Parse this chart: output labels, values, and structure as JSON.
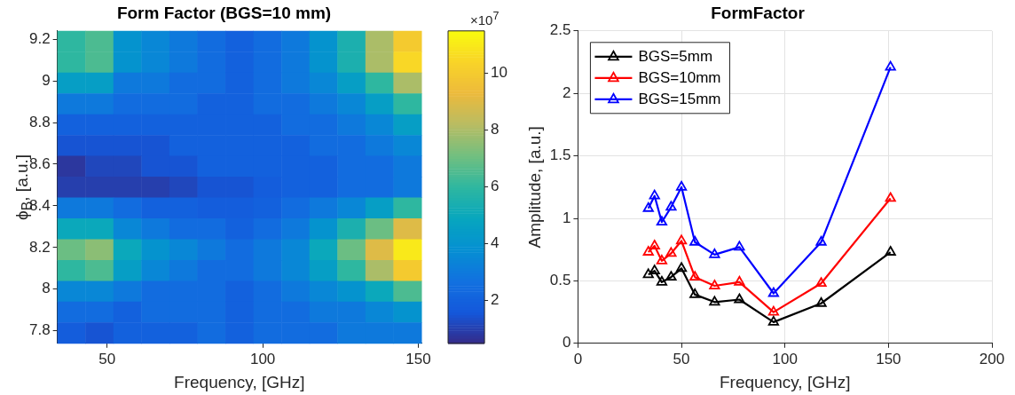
{
  "chart_data": [
    {
      "type": "heatmap",
      "title": "Form Factor (BGS=10 mm)",
      "xlabel": "Frequency, [GHz]",
      "ylabel": "ϕ$_{B}$, [a.u.]",
      "clabel": "×10$^{7}$",
      "x": [
        38.5,
        47.5,
        56.5,
        65.5,
        74.5,
        83.5,
        92.5,
        101.5,
        110.5,
        119.5,
        128.5,
        137.5,
        146.5
      ],
      "y": [
        9.19,
        9.09,
        8.99,
        8.89,
        8.79,
        8.69,
        8.59,
        8.49,
        8.39,
        8.29,
        8.19,
        8.09,
        7.99,
        7.89,
        7.79
      ],
      "cells": [
        [
          6,
          6.5,
          4,
          3.5,
          3,
          2.5,
          2,
          2.5,
          3,
          4,
          5.5,
          8,
          10
        ],
        [
          6,
          6.5,
          4,
          3.5,
          3,
          2.5,
          2,
          2.5,
          3,
          4,
          5.5,
          8,
          10.5
        ],
        [
          4.5,
          4.5,
          3,
          3,
          2.5,
          2.5,
          2,
          2.5,
          3,
          3.5,
          4.5,
          6,
          8
        ],
        [
          3,
          3,
          2.5,
          2.5,
          2.5,
          2,
          2,
          2.5,
          2.5,
          3,
          3.5,
          4.5,
          6
        ],
        [
          2,
          2,
          2,
          2,
          2,
          2,
          2,
          2,
          2.5,
          2.5,
          3,
          3.5,
          4.5
        ],
        [
          1.5,
          1.5,
          1.5,
          1.5,
          2,
          2,
          2,
          2,
          2,
          2.5,
          2.5,
          3,
          3.5
        ],
        [
          0.8,
          1.2,
          1.2,
          1.5,
          1.5,
          2,
          2,
          2,
          2,
          2,
          2.5,
          2.5,
          3
        ],
        [
          1,
          1,
          1,
          1,
          1.2,
          1.5,
          1.5,
          1.8,
          2,
          2,
          2.5,
          2.5,
          3
        ],
        [
          3,
          3,
          2.5,
          2,
          2,
          1.8,
          1.8,
          2,
          2.5,
          3,
          3.5,
          4.5,
          6
        ],
        [
          5,
          5,
          3.5,
          3,
          2.5,
          2.5,
          2,
          2.5,
          3,
          4,
          5.5,
          7,
          9
        ],
        [
          7,
          7.5,
          5,
          4,
          3.5,
          3,
          2.5,
          3,
          3.5,
          5,
          7,
          9,
          11
        ],
        [
          6,
          6.5,
          4.5,
          3.5,
          3,
          2.5,
          2.5,
          3,
          3.5,
          4.5,
          6,
          8,
          10
        ],
        [
          3.5,
          3.5,
          3,
          2.5,
          2.5,
          2.5,
          2,
          2.5,
          3,
          3.5,
          4,
          5,
          6.5
        ],
        [
          2.5,
          2.5,
          2,
          2.5,
          2.5,
          2.5,
          2,
          2.5,
          2.5,
          3,
          3,
          3.5,
          4
        ],
        [
          1.8,
          1.5,
          2,
          2,
          2,
          2.5,
          2,
          2.5,
          2.5,
          2.5,
          3,
          3,
          3
        ]
      ],
      "xlim": [
        34,
        151
      ],
      "xticks": [
        50,
        100,
        150
      ],
      "ylim": [
        7.74,
        9.24
      ],
      "yticks": [
        7.8,
        8,
        8.2,
        8.4,
        8.6,
        8.8,
        9,
        9.2
      ],
      "clim": [
        0.5,
        11.5
      ],
      "cticks": [
        2,
        4,
        6,
        8,
        10
      ]
    },
    {
      "type": "line",
      "title": "FormFactor",
      "xlabel": "Frequency, [GHz]",
      "ylabel": "Amplitude, [a.u.]",
      "x": [
        34,
        37,
        40.5,
        45,
        50,
        56.5,
        66,
        78,
        94.5,
        117.5,
        151
      ],
      "series": [
        {
          "name": "BGS=5mm",
          "color": "#000000",
          "values": [
            0.55,
            0.58,
            0.49,
            0.53,
            0.6,
            0.39,
            0.33,
            0.35,
            0.17,
            0.32,
            0.73
          ]
        },
        {
          "name": "BGS=10mm",
          "color": "#ff0000",
          "values": [
            0.73,
            0.78,
            0.66,
            0.72,
            0.82,
            0.53,
            0.46,
            0.49,
            0.25,
            0.48,
            1.16
          ]
        },
        {
          "name": "BGS=15mm",
          "color": "#0000ff",
          "values": [
            1.08,
            1.18,
            0.97,
            1.09,
            1.25,
            0.81,
            0.71,
            0.77,
            0.4,
            0.81,
            2.21
          ]
        }
      ],
      "xlim": [
        0,
        200
      ],
      "xticks": [
        0,
        50,
        100,
        150,
        200
      ],
      "ylim": [
        0,
        2.5
      ],
      "yticks": [
        0,
        0.5,
        1,
        1.5,
        2,
        2.5
      ],
      "grid": true,
      "legend": "top left",
      "marker": "triangle",
      "line_style": "solid"
    }
  ]
}
